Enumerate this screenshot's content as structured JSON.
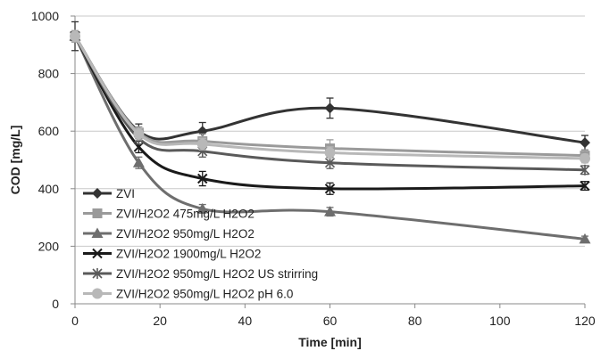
{
  "chart_data": {
    "type": "line",
    "title": "",
    "xlabel": "Time [min]",
    "ylabel": "COD [mg/L]",
    "xlim": [
      0,
      120
    ],
    "ylim": [
      0,
      1000
    ],
    "xticks": [
      0,
      20,
      40,
      60,
      80,
      100,
      120
    ],
    "yticks": [
      0,
      200,
      400,
      600,
      800,
      1000
    ],
    "x_tick_labels": [
      "0",
      "20",
      "40",
      "60",
      "80",
      "100",
      "120"
    ],
    "y_tick_labels": [
      "0",
      "200",
      "400",
      "600",
      "800",
      "1000"
    ],
    "grid": "horizontal",
    "legend_position": "lower-left",
    "x": [
      0,
      15,
      30,
      60,
      120
    ],
    "series": [
      {
        "name": "ZVI",
        "values": [
          930,
          600,
          600,
          680,
          560
        ],
        "errors": [
          50,
          25,
          30,
          35,
          25
        ],
        "color": "#333333",
        "marker": "diamond"
      },
      {
        "name": "ZVI/H2O2 475mg/L H2O2",
        "values": [
          930,
          595,
          565,
          540,
          515
        ],
        "errors": [
          20,
          20,
          25,
          30,
          20
        ],
        "color": "#9a9a9a",
        "marker": "square"
      },
      {
        "name": "ZVI/H2O2 950mg/L H2O2",
        "values": [
          930,
          490,
          330,
          320,
          225
        ],
        "errors": [
          20,
          20,
          15,
          15,
          10
        ],
        "color": "#6e6e6e",
        "marker": "triangle"
      },
      {
        "name": "ZVI/H2O2 1900mg/L H2O2",
        "values": [
          930,
          545,
          435,
          400,
          410
        ],
        "errors": [
          20,
          20,
          25,
          20,
          15
        ],
        "color": "#1a1a1a",
        "marker": "x"
      },
      {
        "name": "ZVI/H2O2 950mg/L H2O2 US strirring",
        "values": [
          930,
          575,
          530,
          490,
          465
        ],
        "errors": [
          20,
          20,
          20,
          20,
          15
        ],
        "color": "#5a5a5a",
        "marker": "star"
      },
      {
        "name": "ZVI/H2O2 950mg/L H2O2 pH 6.0",
        "values": [
          930,
          590,
          555,
          525,
          505
        ],
        "errors": [
          20,
          20,
          20,
          20,
          15
        ],
        "color": "#b8b8b8",
        "marker": "circle"
      }
    ]
  }
}
